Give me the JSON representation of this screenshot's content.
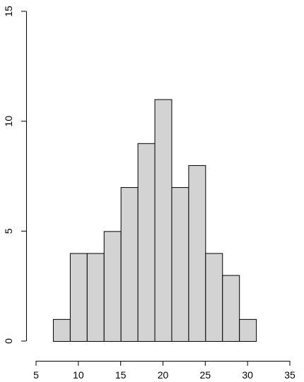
{
  "chart_data": {
    "type": "bar",
    "bins": [
      {
        "from": 7,
        "to": 9,
        "count": 1
      },
      {
        "from": 9,
        "to": 11,
        "count": 4
      },
      {
        "from": 11,
        "to": 13,
        "count": 4
      },
      {
        "from": 13,
        "to": 15,
        "count": 5
      },
      {
        "from": 15,
        "to": 17,
        "count": 7
      },
      {
        "from": 17,
        "to": 19,
        "count": 9
      },
      {
        "from": 19,
        "to": 21,
        "count": 11
      },
      {
        "from": 21,
        "to": 23,
        "count": 7
      },
      {
        "from": 23,
        "to": 25,
        "count": 8
      },
      {
        "from": 25,
        "to": 27,
        "count": 4
      },
      {
        "from": 27,
        "to": 29,
        "count": 3
      },
      {
        "from": 29,
        "to": 31,
        "count": 1
      }
    ],
    "xlim": [
      5,
      35
    ],
    "ylim": [
      0,
      15
    ],
    "x_ticks": [
      "5",
      "10",
      "15",
      "20",
      "25",
      "30",
      "35"
    ],
    "y_ticks": [
      "0",
      "5",
      "10",
      "15"
    ],
    "grid": false,
    "bar_color": "#d3d3d3",
    "edge_color": "#000000"
  }
}
